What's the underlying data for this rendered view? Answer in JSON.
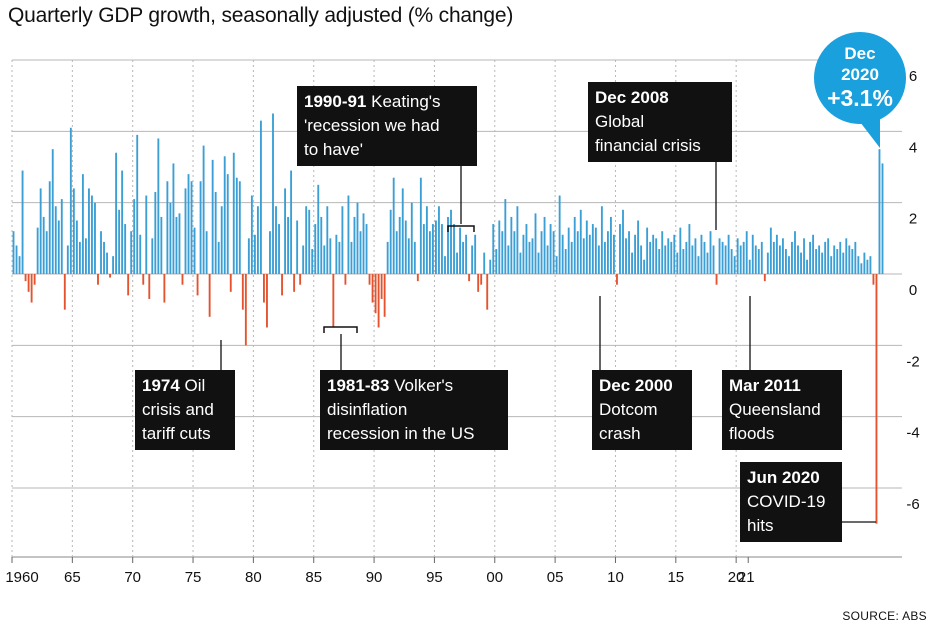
{
  "title": "Quarterly GDP growth, seasonally adjusted (% change)",
  "source": "SOURCE: ABS",
  "colors": {
    "positive": "#3b9fd6",
    "negative": "#e4532e",
    "callout_bg": "#111111",
    "bubble": "#1aa0dc",
    "grid": "#b7b7b7"
  },
  "chart_data": {
    "type": "bar",
    "x_start": "1960 Q1",
    "frequency": "quarterly",
    "ylim": [
      -7.5,
      6.5
    ],
    "yticks": [
      6,
      4,
      2,
      0,
      -2,
      -4,
      -6
    ],
    "ytick_labels": [
      "6",
      "4",
      "2",
      "0",
      "-2",
      "-4",
      "-6"
    ],
    "xtick_labels": [
      "1960",
      "65",
      "70",
      "75",
      "80",
      "85",
      "90",
      "95",
      "00",
      "05",
      "10",
      "15",
      "20"
    ],
    "extra_xtick_label": "21",
    "grid": true,
    "values": [
      1.2,
      0.8,
      0.5,
      2.9,
      -0.2,
      -0.5,
      -0.8,
      -0.3,
      1.3,
      2.4,
      1.6,
      1.2,
      2.6,
      3.5,
      1.9,
      1.5,
      2.1,
      -1.0,
      0.8,
      4.1,
      2.4,
      1.5,
      0.9,
      2.8,
      1.0,
      2.4,
      2.2,
      2.0,
      -0.3,
      1.2,
      0.9,
      0.6,
      -0.1,
      0.5,
      3.4,
      1.8,
      2.9,
      1.4,
      -0.6,
      1.2,
      2.1,
      3.9,
      1.1,
      -0.3,
      2.2,
      -0.7,
      1.0,
      2.3,
      3.8,
      1.6,
      -0.8,
      2.6,
      2.0,
      3.1,
      1.6,
      1.7,
      -0.3,
      2.4,
      2.8,
      2.6,
      1.3,
      -0.6,
      2.6,
      3.6,
      1.2,
      -1.2,
      3.2,
      2.3,
      0.9,
      1.9,
      3.3,
      2.8,
      -0.5,
      3.4,
      2.7,
      2.6,
      -1.0,
      -2.0,
      1.0,
      2.2,
      1.1,
      1.9,
      4.3,
      -0.8,
      -1.5,
      1.2,
      4.5,
      1.9,
      1.4,
      -0.6,
      2.4,
      1.6,
      2.9,
      -0.5,
      1.5,
      -0.3,
      0.8,
      1.9,
      1.8,
      0.7,
      1.4,
      2.5,
      1.6,
      0.8,
      1.9,
      1.0,
      -1.5,
      1.1,
      0.9,
      1.9,
      -0.3,
      2.2,
      0.9,
      1.6,
      2.0,
      1.2,
      1.7,
      1.4,
      -0.3,
      -0.8,
      -1.1,
      -1.5,
      -0.7,
      -1.2,
      0.9,
      1.8,
      2.7,
      1.2,
      1.6,
      2.4,
      1.5,
      1.0,
      2.0,
      0.9,
      -0.2,
      2.7,
      1.4,
      1.9,
      1.2,
      1.4,
      1.5,
      1.9,
      1.4,
      0.5,
      1.6,
      1.8,
      1.4,
      0.6,
      1.3,
      0.9,
      1.1,
      -0.2,
      0.8,
      1.1,
      -0.5,
      -0.3,
      0.6,
      -1.0,
      0.4,
      1.4,
      0.7,
      1.5,
      1.2,
      2.1,
      0.8,
      1.6,
      1.2,
      1.9,
      0.6,
      1.1,
      1.4,
      0.9,
      1.0,
      1.7,
      0.6,
      1.2,
      1.6,
      0.8,
      1.4,
      1.2,
      0.5,
      2.2,
      1.1,
      0.7,
      1.3,
      0.9,
      1.6,
      1.2,
      1.8,
      1.0,
      1.5,
      1.1,
      1.4,
      1.3,
      0.8,
      1.9,
      0.9,
      1.2,
      1.6,
      1.1,
      -0.3,
      1.4,
      1.8,
      1.0,
      1.2,
      0.6,
      1.1,
      1.5,
      0.8,
      0.4,
      1.3,
      0.9,
      1.1,
      1.0,
      0.7,
      1.2,
      0.8,
      1.0,
      0.9,
      1.1,
      0.6,
      1.3,
      0.7,
      0.9,
      1.4,
      0.8,
      1.0,
      0.5,
      1.1,
      0.9,
      0.6,
      1.2,
      0.8,
      -0.3,
      1.0,
      0.9,
      0.8,
      1.1,
      0.7,
      0.5,
      1.0,
      0.8,
      0.9,
      1.2,
      0.4,
      1.1,
      0.8,
      0.7,
      0.9,
      -0.2,
      0.6,
      1.3,
      0.9,
      1.1,
      0.8,
      1.0,
      0.7,
      0.5,
      0.9,
      1.2,
      0.8,
      0.6,
      1.0,
      0.4,
      0.9,
      1.1,
      0.7,
      0.8,
      0.6,
      0.9,
      1.0,
      0.5,
      0.8,
      0.7,
      0.9,
      0.6,
      1.0,
      0.8,
      0.7,
      0.9,
      0.5,
      0.3,
      0.6,
      0.4,
      0.5,
      -0.3,
      -7.0,
      3.5,
      3.1
    ]
  },
  "annotations": [
    {
      "bold": "1974",
      "lines": [
        "1974 Oil",
        "crisis and",
        "tariff cuts"
      ]
    },
    {
      "bold": "1981-83",
      "lines": [
        "1981-83 Volker's",
        "disinflation",
        "recession in the US"
      ]
    },
    {
      "bold": "1990-91",
      "lines": [
        "1990-91 Keating's",
        "'recession we had",
        "to have'"
      ]
    },
    {
      "bold": "Dec 2000",
      "lines": [
        "Dec 2000",
        "Dotcom",
        "crash"
      ]
    },
    {
      "bold": "Dec 2008",
      "lines": [
        "Dec 2008",
        "Global",
        "financial crisis"
      ]
    },
    {
      "bold": "Mar 2011",
      "lines": [
        "Mar 2011",
        "Queensland",
        "floods"
      ]
    },
    {
      "bold": "Jun 2020",
      "lines": [
        "Jun 2020",
        "COVID-19",
        "hits"
      ]
    }
  ],
  "bubble": {
    "line1": "Dec",
    "line2": "2020",
    "value": "+3.1%"
  }
}
